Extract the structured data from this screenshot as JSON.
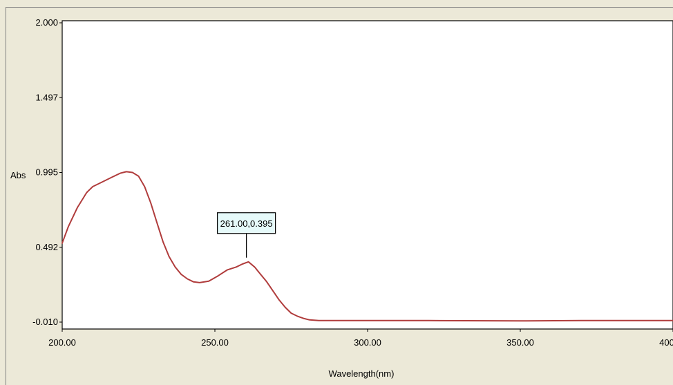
{
  "chart_data": {
    "type": "line",
    "title": "",
    "xlabel": "Wavelength(nm)",
    "ylabel": "Abs",
    "xlim": [
      200,
      400
    ],
    "ylim": [
      -0.01,
      2.0
    ],
    "x_ticks": [
      "200.00",
      "250.00",
      "300.00",
      "350.00",
      "400.00"
    ],
    "y_ticks": [
      "-0.010",
      "0.492",
      "0.995",
      "1.497",
      "2.000"
    ],
    "grid": false,
    "series": [
      {
        "color": "#b03c3c",
        "x": [
          200,
          202,
          205,
          208,
          210,
          213,
          216,
          219,
          221,
          223,
          225,
          227,
          229,
          231,
          233,
          235,
          237,
          239,
          241,
          243,
          245,
          248,
          251,
          254,
          257,
          259,
          261,
          263,
          265,
          267,
          269,
          271,
          273,
          275,
          277,
          279,
          281,
          284,
          290,
          300,
          320,
          350,
          370,
          400
        ],
        "y": [
          0.52,
          0.63,
          0.76,
          0.86,
          0.9,
          0.93,
          0.96,
          0.99,
          1.0,
          0.995,
          0.97,
          0.9,
          0.79,
          0.66,
          0.53,
          0.43,
          0.36,
          0.31,
          0.28,
          0.26,
          0.255,
          0.265,
          0.3,
          0.34,
          0.36,
          0.38,
          0.395,
          0.36,
          0.31,
          0.26,
          0.2,
          0.14,
          0.09,
          0.05,
          0.03,
          0.015,
          0.005,
          0.0,
          0.0,
          0.0,
          0.0,
          -0.002,
          0.0,
          0.0
        ]
      }
    ],
    "annotations": [
      {
        "x": 261.0,
        "y": 0.395,
        "text": "261.00,0.395"
      }
    ]
  }
}
